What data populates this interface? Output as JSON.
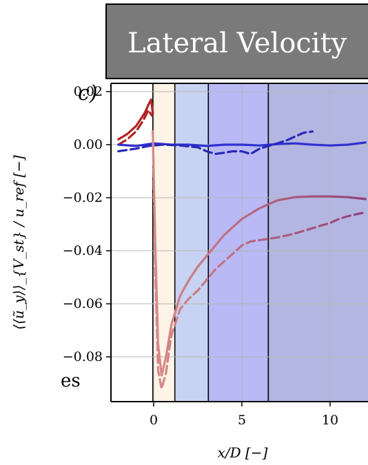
{
  "panel_title": "Lateral Velocity",
  "panel_letter": "c)",
  "side_text": "es",
  "colors": {
    "title_bg": "#7a7a7a",
    "title_text": "#ffffff",
    "zone1": "#fdf3e6",
    "zone2": "#c8d2f2",
    "zone3": "#b9b9f6",
    "zone4": "#b3b6e0",
    "grid": "#b5b5b5",
    "red_solid": "#b22222",
    "red_dashed": "#b22222",
    "blue_solid": "#3030d0",
    "blue_dashed": "#2828b8",
    "pink_solid": "#d88a86",
    "purple_solid": "#8e3f7c"
  },
  "chart_data": {
    "type": "line",
    "title": "Lateral Velocity",
    "xlabel": "x/D [−]",
    "ylabel": "⟨⟨ũ_y⟩⟩_{V_st} / u_ref [−]",
    "xlim": [
      -2.5,
      12.2
    ],
    "ylim": [
      -0.096,
      0.022
    ],
    "xticks": [
      0,
      5,
      10
    ],
    "yticks": [
      0.02,
      0.0,
      -0.02,
      -0.04,
      -0.06,
      -0.08
    ],
    "xtick_labels": [
      "0",
      "5",
      "10"
    ],
    "ytick_labels": [
      "0.02",
      "0.00",
      "−0.02",
      "−0.04",
      "−0.06",
      "−0.08"
    ],
    "grid": true,
    "regions": [
      {
        "x0": -0.05,
        "x1": 1.2
      },
      {
        "x0": 1.2,
        "x1": 3.1
      },
      {
        "x0": 3.1,
        "x1": 6.5
      },
      {
        "x0": 6.5,
        "x1": 12.2
      }
    ],
    "series": [
      {
        "style": "solid",
        "color": "#b22222",
        "x": [
          -2.0,
          -1.5,
          -1.0,
          -0.7,
          -0.5,
          -0.3,
          -0.15,
          -0.05
        ],
        "y": [
          0.002,
          0.004,
          0.007,
          0.01,
          0.012,
          0.015,
          0.017,
          0.012
        ]
      },
      {
        "style": "dashed",
        "color": "#b22222",
        "x": [
          -2.0,
          -1.5,
          -1.0,
          -0.6,
          -0.3,
          -0.1
        ],
        "y": [
          0.0,
          0.002,
          0.005,
          0.009,
          0.013,
          0.011
        ]
      },
      {
        "style": "solid",
        "color": "#3030d0",
        "x": [
          -2.0,
          -1.0,
          0.0,
          1.0,
          2.0,
          3.0,
          4.0,
          5.0,
          6.0,
          7.0,
          8.0,
          9.0,
          10.0,
          11.0,
          12.0
        ],
        "y": [
          0.0,
          -0.0005,
          0.0005,
          0.0,
          0.0,
          -0.0005,
          0.0,
          0.0,
          -0.0003,
          0.0002,
          0.0005,
          0.0,
          -0.0003,
          0.0,
          0.0008
        ]
      },
      {
        "style": "dashed",
        "color": "#2828b8",
        "x": [
          -2.0,
          -1.0,
          -0.3,
          0.5,
          1.5,
          2.5,
          3.0,
          3.5,
          4.0,
          4.5,
          5.0,
          5.5,
          6.0,
          6.5,
          7.0,
          7.5,
          8.0,
          8.5,
          9.0
        ],
        "y": [
          -0.0025,
          -0.0015,
          -0.0005,
          0.0,
          -0.0003,
          -0.001,
          -0.0025,
          -0.0035,
          -0.003,
          -0.0025,
          -0.0025,
          -0.0035,
          -0.0015,
          -0.0005,
          0.0005,
          0.0015,
          0.003,
          0.0045,
          0.005
        ]
      },
      {
        "style": "solid",
        "color_from": "#d88a86",
        "color_to": "#8e3f7c",
        "x": [
          -0.05,
          0.1,
          0.25,
          0.45,
          0.7,
          1.0,
          1.5,
          2.0,
          2.5,
          3.0,
          3.5,
          4.0,
          5.0,
          6.0,
          7.0,
          8.0,
          9.0,
          10.0,
          11.0,
          12.0
        ],
        "y": [
          0.005,
          -0.04,
          -0.075,
          -0.087,
          -0.08,
          -0.068,
          -0.057,
          -0.051,
          -0.046,
          -0.042,
          -0.038,
          -0.034,
          -0.028,
          -0.024,
          -0.021,
          -0.0198,
          -0.0195,
          -0.0195,
          -0.0198,
          -0.0205
        ]
      },
      {
        "style": "dashed",
        "color_from": "#d88a86",
        "color_to": "#8e3f7c",
        "x": [
          -0.05,
          0.1,
          0.25,
          0.45,
          0.7,
          1.0,
          1.5,
          2.0,
          2.5,
          3.0,
          3.5,
          4.0,
          4.5,
          5.0,
          5.5,
          6.0,
          6.5,
          7.0,
          7.5,
          8.0,
          8.5,
          9.0,
          9.5,
          10.0,
          10.5,
          11.0,
          11.5,
          12.0
        ],
        "y": [
          0.005,
          -0.05,
          -0.085,
          -0.092,
          -0.086,
          -0.072,
          -0.062,
          -0.058,
          -0.055,
          -0.051,
          -0.047,
          -0.044,
          -0.041,
          -0.038,
          -0.0365,
          -0.036,
          -0.0355,
          -0.035,
          -0.0343,
          -0.0335,
          -0.0325,
          -0.0315,
          -0.0305,
          -0.0295,
          -0.028,
          -0.027,
          -0.0262,
          -0.0255
        ]
      }
    ]
  }
}
